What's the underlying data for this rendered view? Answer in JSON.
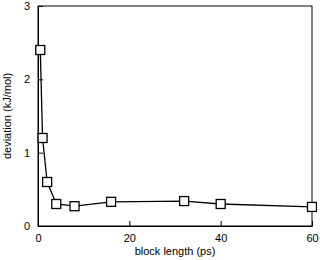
{
  "chart_data": {
    "type": "line",
    "x_label": "block length  (ps)",
    "y_label": "deviation  (kJ/mol)",
    "x": [
      0.5,
      1,
      2,
      4,
      8,
      16,
      32,
      40,
      60
    ],
    "values": [
      2.4,
      1.2,
      0.6,
      0.3,
      0.27,
      0.33,
      0.34,
      0.3,
      0.26
    ],
    "color": "#000000",
    "marker": "square",
    "line_style": "solid",
    "xlim": [
      0,
      60
    ],
    "xticks": [
      0,
      20,
      40,
      60
    ],
    "ylim": [
      0,
      3
    ],
    "yticks": [
      0,
      1,
      2,
      3
    ],
    "grid": false
  }
}
